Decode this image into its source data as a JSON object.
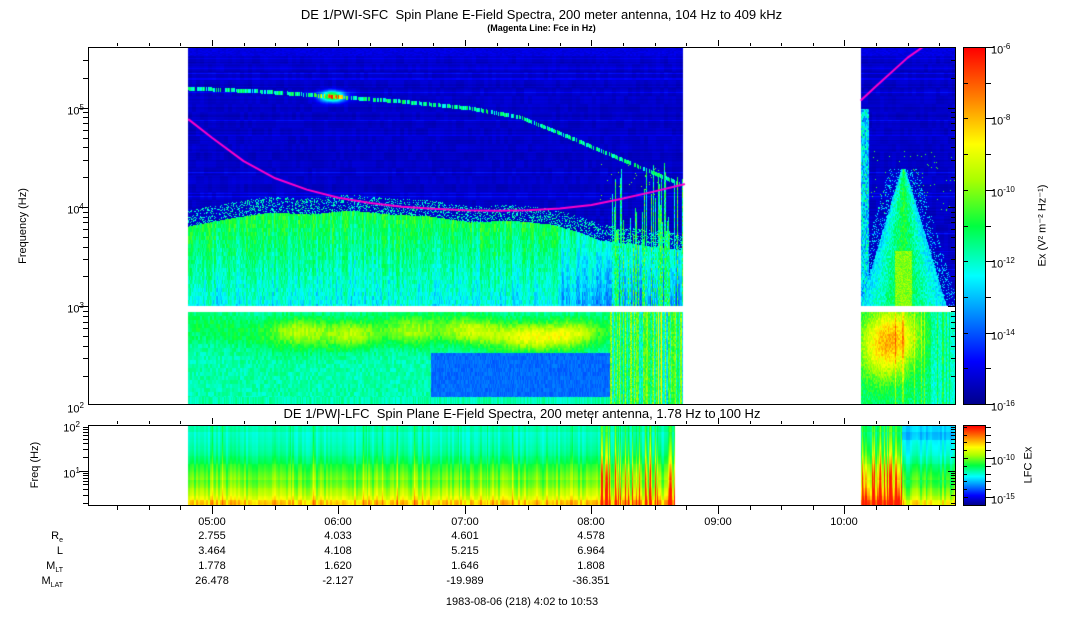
{
  "sfc_panel": {
    "title": "DE 1/PWI-SFC  Spin Plane E-Field Spectra, 200 meter antenna, 104 Hz to 409 kHz",
    "subtitle": "(Magenta Line: Fce in Hz)",
    "ylabel": "Frequency (Hz)",
    "yticks_exp": [
      5,
      4,
      3,
      2
    ],
    "freq_range_hz": [
      104,
      409000
    ],
    "colorbar": {
      "label": "Ex (V² m⁻² Hz⁻¹)",
      "ticks_exp": [
        -6,
        -8,
        -10,
        -12,
        -14,
        -16
      ],
      "range_exp": [
        -16,
        -6
      ]
    }
  },
  "lfc_panel": {
    "title": "DE 1/PWI-LFC  Spin Plane E-Field Spectra, 200 meter antenna, 1.78 Hz to 100 Hz",
    "ylabel": "Freq (Hz)",
    "yticks_exp": [
      2,
      1
    ],
    "freq_range_hz": [
      1.78,
      100
    ],
    "colorbar": {
      "label": "LFC Ex",
      "ticks_exp": [
        -10,
        -15
      ]
    }
  },
  "time_axis": {
    "labels": [
      "05:00",
      "06:00",
      "07:00",
      "08:00",
      "09:00",
      "10:00"
    ],
    "label_hours": [
      5,
      6,
      7,
      8,
      9,
      10
    ],
    "start": "4:02",
    "end": "10:53"
  },
  "ephemeris": {
    "value_hours": [
      5,
      6,
      7,
      8
    ],
    "rows": [
      {
        "label": "R",
        "sub": "e",
        "values": [
          "2.755",
          "4.033",
          "4.601",
          "4.578"
        ]
      },
      {
        "label": "L",
        "sub": "",
        "values": [
          "3.464",
          "4.108",
          "5.215",
          "6.964"
        ]
      },
      {
        "label": "M",
        "sub": "LT",
        "values": [
          "1.778",
          "1.620",
          "1.646",
          "1.808"
        ]
      },
      {
        "label": "M",
        "sub": "LAT",
        "values": [
          "26.478",
          "-2.127",
          "-19.989",
          "-36.351"
        ]
      }
    ]
  },
  "footer": {
    "date_line": "1983-08-06 (218) 4:02 to 10:53"
  },
  "chart_data": {
    "type": "heatmap",
    "panels": [
      {
        "name": "SFC",
        "instrument": "DE 1/PWI-SFC",
        "x_axis": "UT",
        "x_range": [
          "04:02",
          "10:53"
        ],
        "y_axis": "Frequency (Hz)",
        "y_range_hz": [
          104,
          409000
        ],
        "y_scale": "log",
        "z_label": "Ex (V² m⁻² Hz⁻¹)",
        "z_range": [
          1e-16,
          1e-06
        ],
        "z_scale": "log",
        "data_coverage": [
          [
            "04:49",
            "08:44"
          ],
          [
            "10:08",
            "10:53"
          ]
        ],
        "receiver_band_break_hz": [
          880,
          1010
        ]
      },
      {
        "name": "LFC",
        "instrument": "DE 1/PWI-LFC",
        "x_axis": "UT",
        "x_range": [
          "04:02",
          "10:53"
        ],
        "y_axis": "Freq (Hz)",
        "y_range_hz": [
          1.78,
          100
        ],
        "y_scale": "log",
        "z_label": "LFC Ex",
        "z_ticks": [
          1e-10,
          1e-15
        ],
        "data_coverage": [
          [
            "04:49",
            "08:39"
          ],
          [
            "10:08",
            "10:53"
          ]
        ]
      }
    ],
    "fce_line": {
      "label": "Fce in Hz",
      "color": "#ff00cc",
      "samples": [
        {
          "t": "04:49",
          "f": 76000
        },
        {
          "t": "05:00",
          "f": 50000
        },
        {
          "t": "05:15",
          "f": 29000
        },
        {
          "t": "05:30",
          "f": 19500
        },
        {
          "t": "05:45",
          "f": 15000
        },
        {
          "t": "06:00",
          "f": 12400
        },
        {
          "t": "06:15",
          "f": 11000
        },
        {
          "t": "06:30",
          "f": 10100
        },
        {
          "t": "06:45",
          "f": 9600
        },
        {
          "t": "07:00",
          "f": 9300
        },
        {
          "t": "07:15",
          "f": 9200
        },
        {
          "t": "07:30",
          "f": 9300
        },
        {
          "t": "07:45",
          "f": 9700
        },
        {
          "t": "08:00",
          "f": 10500
        },
        {
          "t": "08:15",
          "f": 12200
        },
        {
          "t": "08:30",
          "f": 14400
        },
        {
          "t": "08:44",
          "f": 17000
        },
        {
          "t": "10:08",
          "f": 120000
        },
        {
          "t": "10:15",
          "f": 165000
        },
        {
          "t": "10:30",
          "f": 320000
        },
        {
          "t": "10:40",
          "f": 450000
        }
      ]
    },
    "colormap_stops": [
      [
        0.0,
        [
          0,
          0,
          140
        ]
      ],
      [
        0.12,
        [
          0,
          0,
          255
        ]
      ],
      [
        0.36,
        [
          0,
          255,
          255
        ]
      ],
      [
        0.5,
        [
          0,
          255,
          64
        ]
      ],
      [
        0.63,
        [
          170,
          255,
          0
        ]
      ],
      [
        0.73,
        [
          255,
          255,
          0
        ]
      ],
      [
        0.86,
        [
          255,
          128,
          0
        ]
      ],
      [
        1.0,
        [
          255,
          0,
          0
        ]
      ]
    ],
    "features": [
      "SFC: continuum/hiss edge descending from ~80 kHz near 04:50 to ~15 kHz by 06:30",
      "SFC: broadband green emissions below ~10 kHz strongest 04:50-07:50",
      "SFC: funnel-shaped auroral hiss burst ~10:15-10:40 reaching ~30 kHz with intense low-frequency core",
      "SFC: white horizontal band near 1 kHz separates receiver bands",
      "LFC: intensity increases toward low frequencies; intense red bursts ~08:10-08:40 and ~10:08-10:20"
    ]
  }
}
